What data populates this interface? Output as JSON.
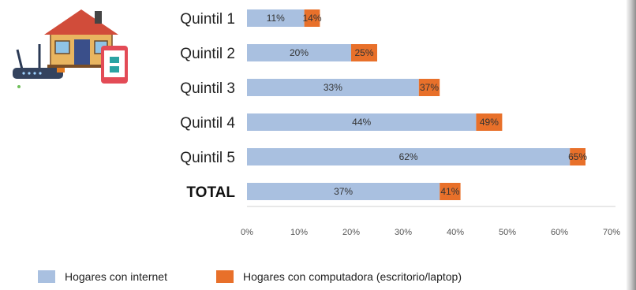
{
  "chart_data": {
    "type": "bar",
    "orientation": "horizontal",
    "layout": "stacked",
    "categories": [
      "Quintil 1",
      "Quintil 2",
      "Quintil 3",
      "Quintil 4",
      "Quintil 5",
      "TOTAL"
    ],
    "series": [
      {
        "name": "Hogares con internet",
        "values": [
          11,
          20,
          33,
          44,
          62,
          37
        ],
        "labels": [
          "11%",
          "20%",
          "33%",
          "44%",
          "62%",
          "37%"
        ],
        "color": "#a9c0e0"
      },
      {
        "name": "Hogares con computadora (escritorio/laptop)",
        "values": [
          14,
          25,
          37,
          49,
          65,
          41
        ],
        "labels": [
          "14%",
          "25%",
          "37%",
          "49%",
          "65%",
          "41%"
        ],
        "color": "#e8702a"
      }
    ],
    "xlim": [
      0,
      70
    ],
    "ticks": [
      "0%",
      "10%",
      "20%",
      "30%",
      "40%",
      "50%",
      "60%",
      "70%"
    ],
    "legend": "bottom",
    "grid": false
  },
  "colors": {
    "internet": "#a9c0e0",
    "computer": "#e8702a"
  },
  "icons": [
    "house-icon",
    "router-icon",
    "tablet-icon"
  ]
}
